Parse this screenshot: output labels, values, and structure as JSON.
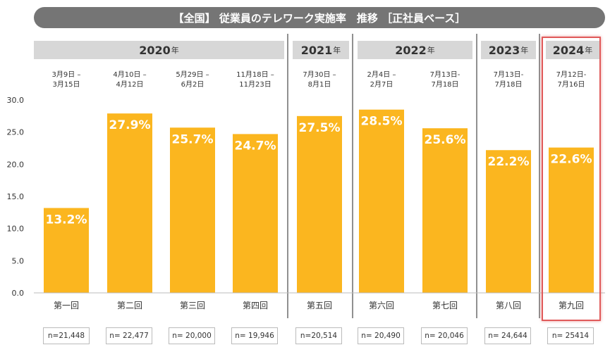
{
  "title": "【全国】 従業員のテレワーク実施率　推移 ［正社員ベース］",
  "colors": {
    "bar": "#fbb61f",
    "title_bg": "#757575",
    "year_bg": "#d7d7d7",
    "highlight": "#e05a5a"
  },
  "years": [
    {
      "label": "2020",
      "unit": "年"
    },
    {
      "label": "2021",
      "unit": "年"
    },
    {
      "label": "2022",
      "unit": "年"
    },
    {
      "label": "2023",
      "unit": "年"
    },
    {
      "label": "2024",
      "unit": "年"
    }
  ],
  "dates": [
    [
      "3月9日 –",
      "3月15日"
    ],
    [
      "4月10日 –",
      "4月12日"
    ],
    [
      "5月29日 –",
      "6月2日"
    ],
    [
      "11月18日 –",
      "11月23日"
    ],
    [
      "7月30日 –",
      "8月1日"
    ],
    [
      "2月4日 –",
      "2月7日"
    ],
    [
      "7月13日-",
      "7月18日"
    ],
    [
      "7月13日-",
      "7月18日"
    ],
    [
      "7月12日-",
      "7月16日"
    ]
  ],
  "samples": [
    "n=21,448",
    "n= 22,477",
    "n= 20,000",
    "n= 19,946",
    "n=20,514",
    "n= 20,490",
    "n= 20,046",
    "n= 24,644",
    "n= 25414"
  ],
  "chart_data": {
    "type": "bar",
    "title": "【全国】 従業員のテレワーク実施率　推移 ［正社員ベース］",
    "categories": [
      "第一回",
      "第二回",
      "第三回",
      "第四回",
      "第五回",
      "第六回",
      "第七回",
      "第八回",
      "第九回"
    ],
    "values": [
      13.2,
      27.9,
      25.7,
      24.7,
      27.5,
      28.5,
      25.6,
      22.2,
      22.6
    ],
    "value_labels": [
      "13.2%",
      "27.9%",
      "25.7%",
      "24.7%",
      "27.5%",
      "28.5%",
      "25.6%",
      "22.2%",
      "22.6%"
    ],
    "yticks": [
      "0.0",
      "5.0",
      "10.0",
      "15.0",
      "20.0",
      "25.0",
      "30.0"
    ],
    "ylim": [
      0,
      30
    ],
    "xlabel": "",
    "ylabel": "",
    "grid": false
  }
}
